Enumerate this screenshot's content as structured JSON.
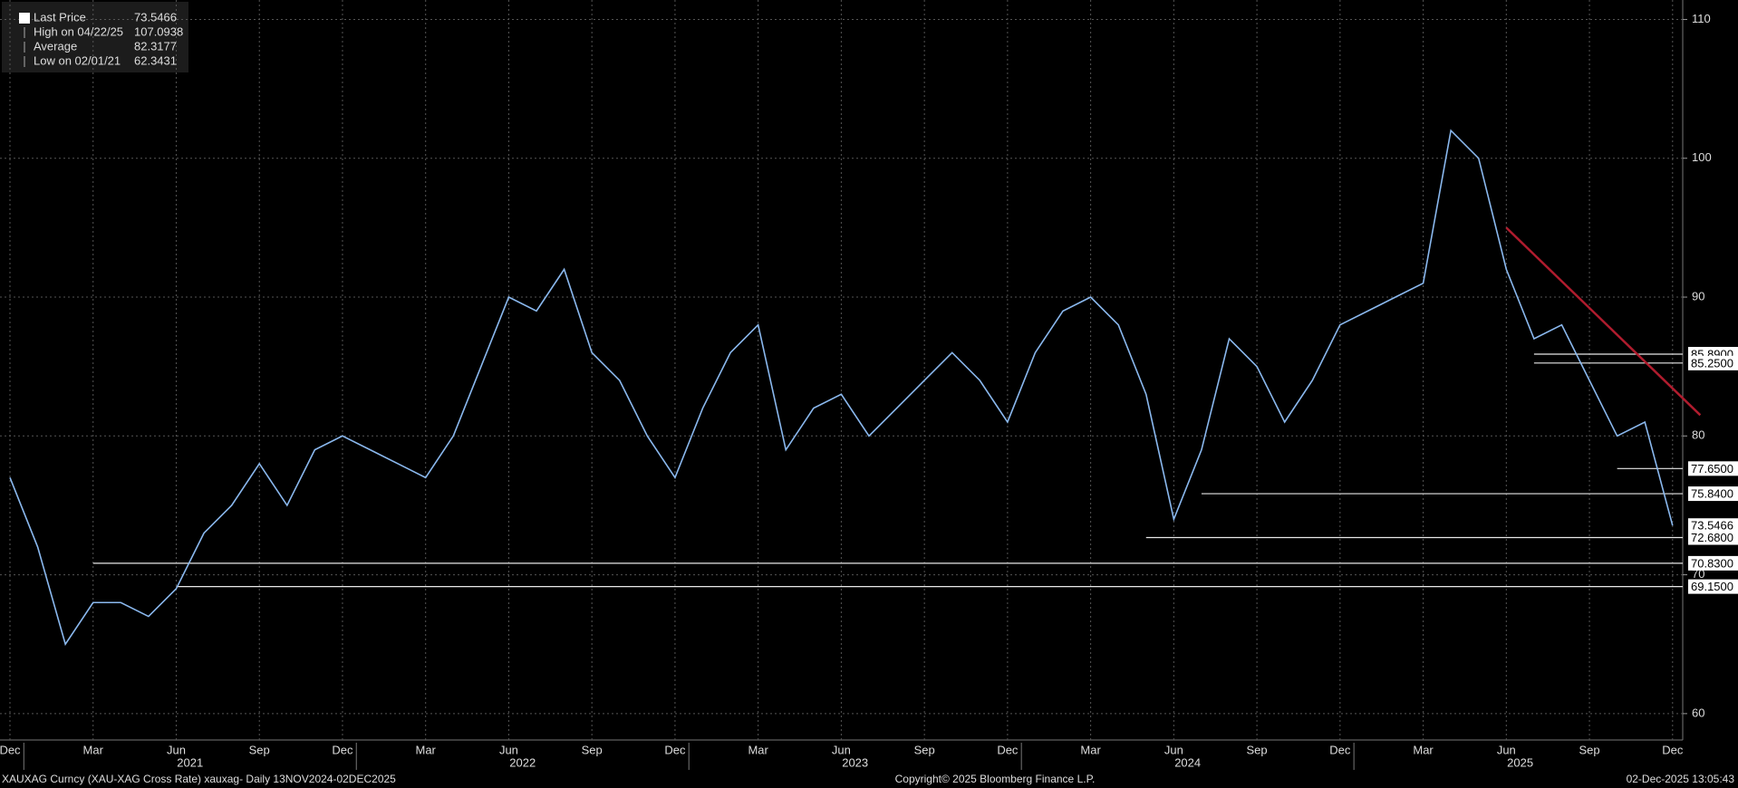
{
  "chart_data": {
    "type": "line",
    "legend": [
      {
        "name": "Last Price",
        "value": 73.5466
      },
      {
        "name": "High on 04/22/25",
        "value": 107.0938
      },
      {
        "name": "Average",
        "value": 82.3177
      },
      {
        "name": "Low on 02/01/21",
        "value": 62.3431
      }
    ],
    "categories": [
      "Dec",
      null,
      null,
      "Mar",
      null,
      null,
      "Jun",
      null,
      null,
      "Sep",
      null,
      null,
      "Dec",
      null,
      null,
      "Mar",
      null,
      null,
      "Jun",
      null,
      null,
      "Sep",
      null,
      null,
      "Dec",
      null,
      null,
      "Mar",
      null,
      null,
      "Jun",
      null,
      null,
      "Sep",
      null,
      null,
      "Dec",
      null,
      null,
      "Mar",
      null,
      null,
      "Jun",
      null,
      null,
      "Sep",
      null,
      null,
      "Dec",
      null,
      null,
      "Mar",
      null,
      null,
      "Jun",
      null,
      null,
      "Sep",
      null,
      null,
      "Dec"
    ],
    "years": [
      "2021",
      "2022",
      "2023",
      "2024",
      "2025"
    ],
    "series": [
      {
        "name": "Last Price",
        "color": "#8ab8ee",
        "values": [
          77,
          72,
          65,
          68,
          68,
          67,
          69,
          73,
          75,
          78,
          75,
          79,
          80,
          79,
          78,
          77,
          80,
          85,
          90,
          89,
          92,
          86,
          84,
          80,
          77,
          82,
          86,
          88,
          79,
          82,
          83,
          80,
          82,
          84,
          86,
          84,
          81,
          86,
          89,
          90,
          88,
          83,
          74,
          79,
          87,
          85,
          81,
          84,
          88,
          89,
          90,
          91,
          102,
          100,
          92,
          87,
          88,
          84,
          80,
          81,
          73.5466
        ]
      }
    ],
    "levels": [
      {
        "value": 85.89,
        "label": "85.8900",
        "from": 55
      },
      {
        "value": 85.25,
        "label": "85.2500",
        "from": 55
      },
      {
        "value": 77.65,
        "label": "77.6500",
        "from": 58
      },
      {
        "value": 75.84,
        "label": "75.8400",
        "from": 43
      },
      {
        "value": 73.5466,
        "label": "73.5466"
      },
      {
        "value": 72.68,
        "label": "72.6800",
        "from": 41
      },
      {
        "value": 70.83,
        "label": "70.8300",
        "from": 3
      },
      {
        "value": 69.15,
        "label": "69.1500",
        "from": 6
      }
    ],
    "trendline": {
      "color": "#b01c2e",
      "start": [
        54,
        95
      ],
      "end": [
        61,
        81.5
      ]
    },
    "ylim": [
      58.1,
      111.4
    ],
    "yticks": [
      60,
      70,
      80,
      90,
      100,
      110
    ],
    "grid": true,
    "footer": {
      "left": "XAUXAG Curncy (XAU-XAG Cross Rate) xauxag- Daily 13NOV2024-02DEC2025",
      "center": "Copyright© 2025 Bloomberg Finance L.P.",
      "right": "02-Dec-2025 13:05:43"
    }
  }
}
